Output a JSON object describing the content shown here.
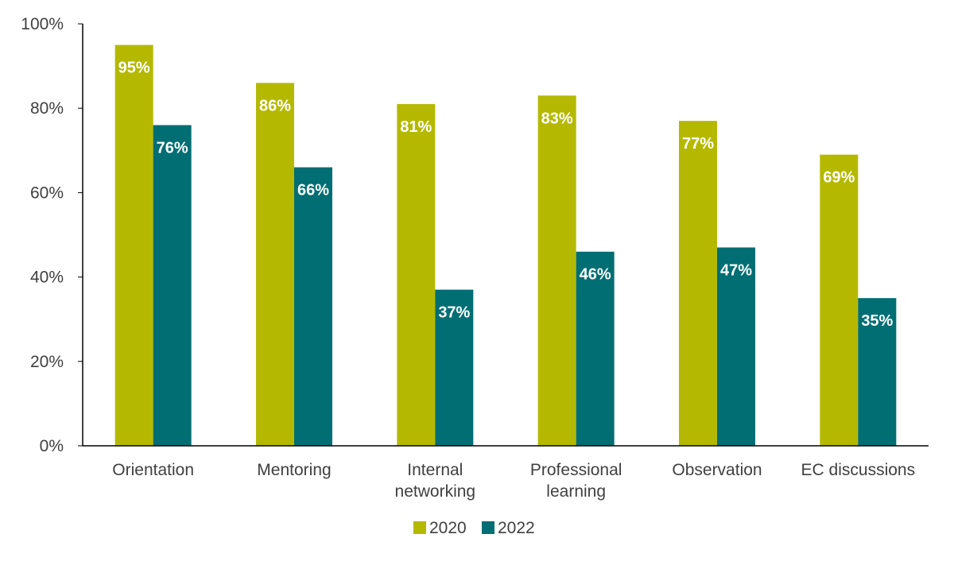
{
  "chart_data": {
    "type": "bar",
    "categories": [
      [
        "Orientation"
      ],
      [
        "Mentoring"
      ],
      [
        "Internal",
        "networking"
      ],
      [
        "Professional",
        "learning"
      ],
      [
        "Observation"
      ],
      [
        "EC discussions"
      ]
    ],
    "series": [
      {
        "name": "2020",
        "color": "#b4b900",
        "values": [
          95,
          86,
          81,
          83,
          77,
          69
        ]
      },
      {
        "name": "2022",
        "color": "#006e73",
        "values": [
          76,
          66,
          37,
          46,
          47,
          35
        ]
      }
    ],
    "ylim": [
      0,
      100
    ],
    "yticks": [
      0,
      20,
      40,
      60,
      80,
      100
    ],
    "ytick_labels": [
      "0%",
      "20%",
      "40%",
      "60%",
      "80%",
      "100%"
    ],
    "value_suffix": "%",
    "legend_position": "bottom-center",
    "grid": false,
    "title": "",
    "xlabel": "",
    "ylabel": ""
  }
}
